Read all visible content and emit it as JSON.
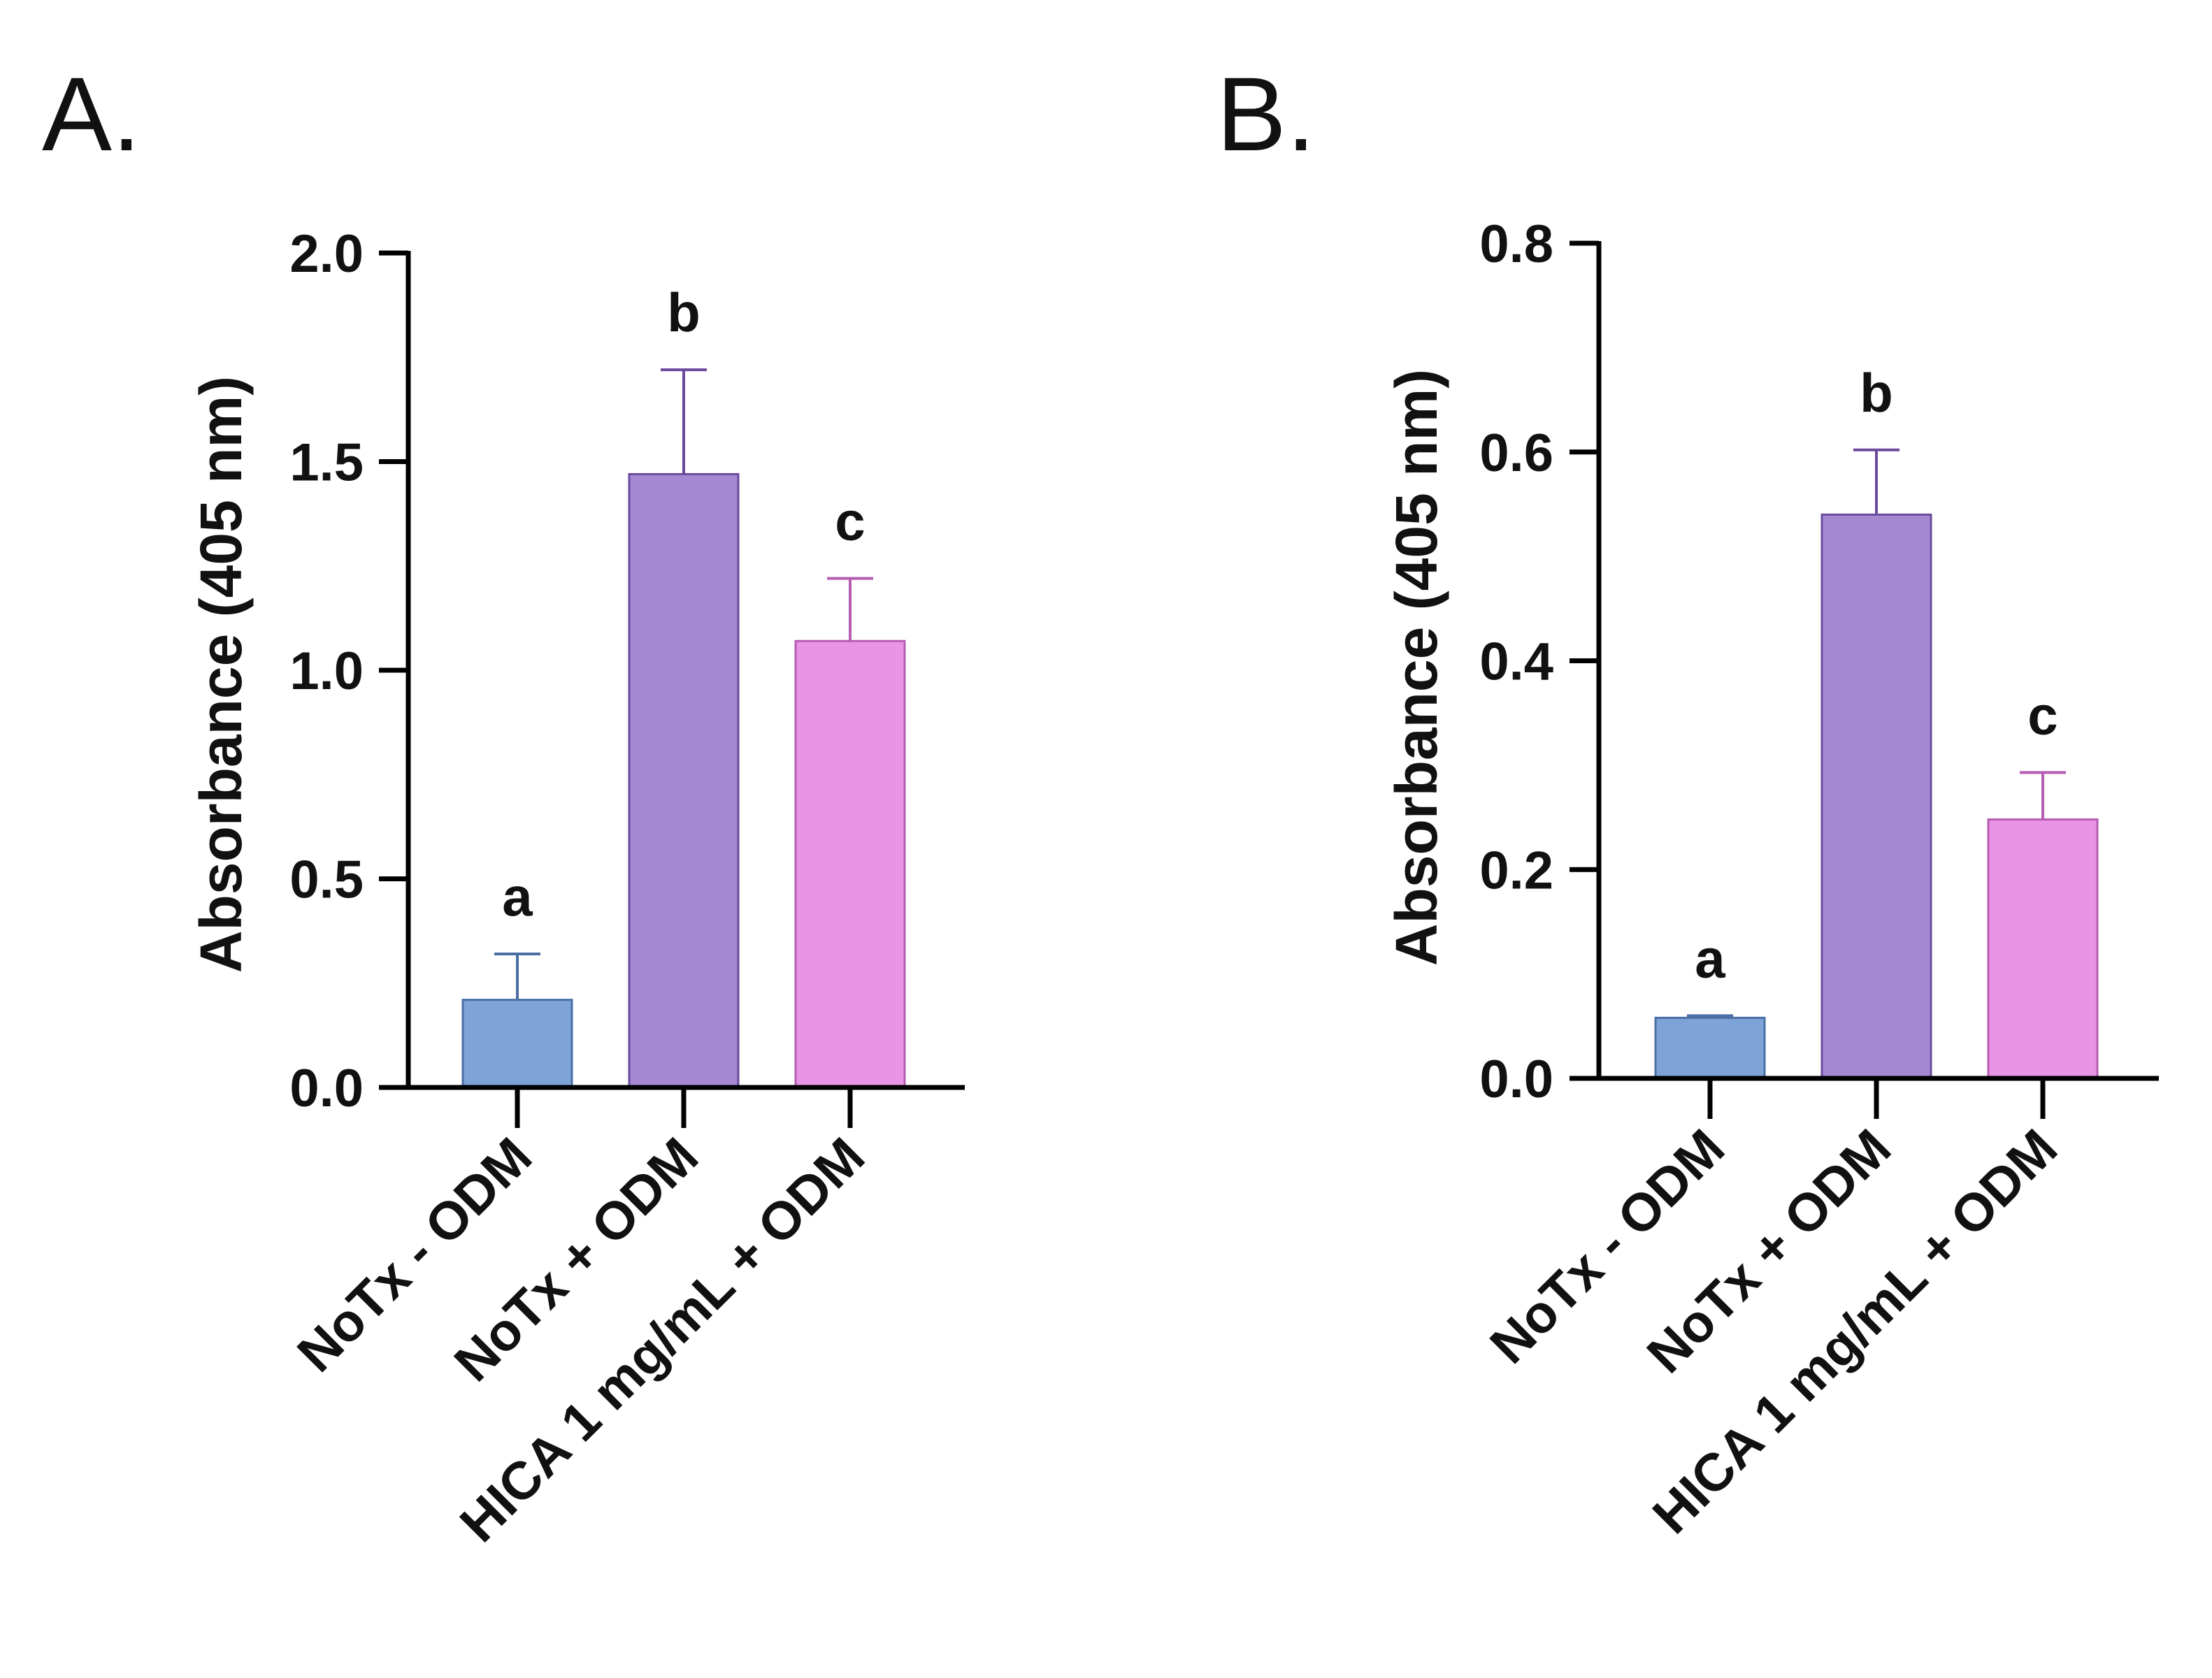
{
  "colors": {
    "axis": "#000000",
    "bar_fills": [
      "#7ea3d6",
      "#a489d2",
      "#e994e6"
    ],
    "bar_strokes": [
      "#4a6fa5",
      "#6a4a9c",
      "#b55db3"
    ]
  },
  "chart_data": [
    {
      "type": "bar",
      "panel": "A.",
      "title": "",
      "xlabel": "",
      "ylabel": "Absorbance (405 nm)",
      "ylim": [
        0,
        2.0
      ],
      "yticks": [
        0.0,
        0.5,
        1.0,
        1.5,
        2.0
      ],
      "ytick_labels": [
        "0.0",
        "0.5",
        "1.0",
        "1.5",
        "2.0"
      ],
      "categories": [
        "NoTx - ODM",
        "NoTx + ODM",
        "HICA 1 mg/mL + ODM"
      ],
      "values": [
        0.21,
        1.47,
        1.07
      ],
      "errors": [
        0.11,
        0.25,
        0.15
      ],
      "significance": [
        "a",
        "b",
        "c"
      ],
      "grid": false,
      "legend": "none"
    },
    {
      "type": "bar",
      "panel": "B.",
      "title": "",
      "xlabel": "",
      "ylabel": "Absorbance (405 nm)",
      "ylim": [
        0,
        0.8
      ],
      "yticks": [
        0.0,
        0.2,
        0.4,
        0.6,
        0.8
      ],
      "ytick_labels": [
        "0.0",
        "0.2",
        "0.4",
        "0.6",
        "0.8"
      ],
      "categories": [
        "NoTx - ODM",
        "NoTx + ODM",
        "HICA 1 mg/mL + ODM"
      ],
      "values": [
        0.058,
        0.54,
        0.248
      ],
      "errors": [
        0.002,
        0.062,
        0.045
      ],
      "significance": [
        "a",
        "b",
        "c"
      ],
      "grid": false,
      "legend": "none"
    }
  ]
}
